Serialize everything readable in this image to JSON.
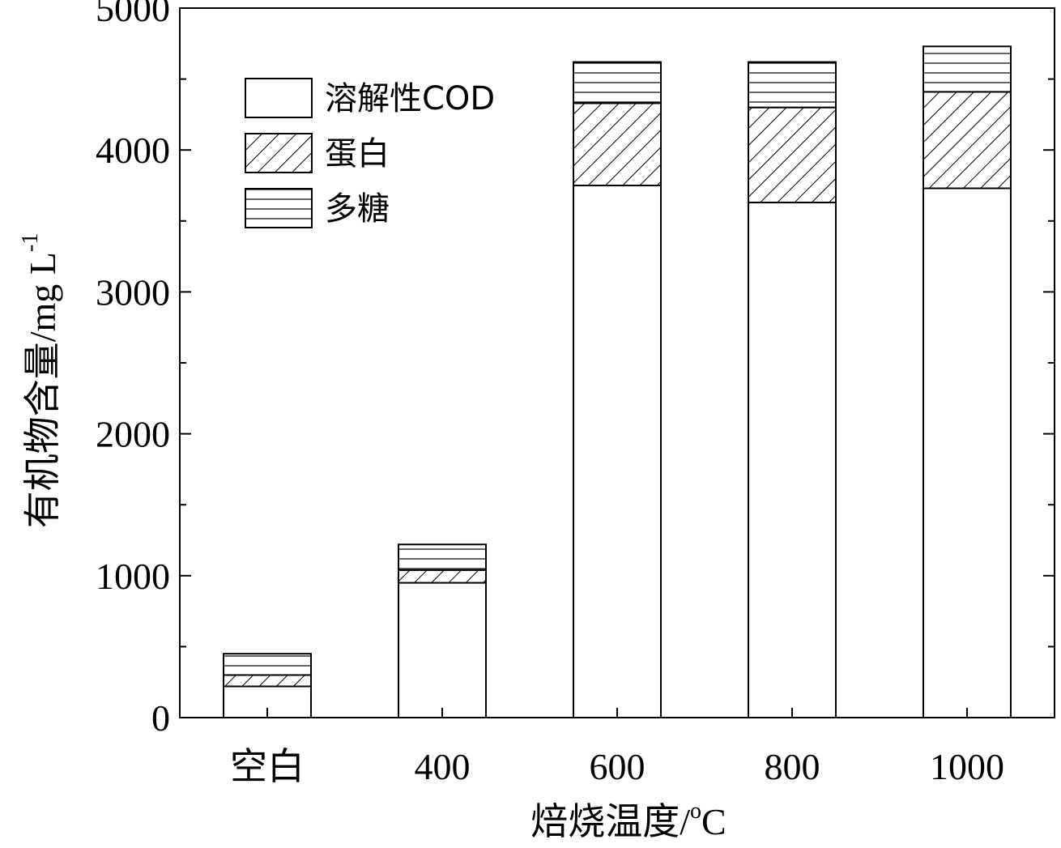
{
  "chart_data": {
    "type": "bar",
    "stacked": true,
    "categories": [
      "空白",
      "400",
      "600",
      "800",
      "1000"
    ],
    "series": [
      {
        "name": "溶解性COD",
        "pattern": "none",
        "values": [
          220,
          950,
          3750,
          3630,
          3730
        ]
      },
      {
        "name": "蛋白",
        "pattern": "diagonal-hatch",
        "values": [
          80,
          90,
          580,
          670,
          680
        ]
      },
      {
        "name": "多糖",
        "pattern": "horizontal-lines",
        "values": [
          150,
          180,
          290,
          320,
          320
        ]
      }
    ],
    "xlabel": "焙烧温度/",
    "xlabel_superscript": "o",
    "xlabel_unit": "C",
    "ylabel": "有机物含量/mg L",
    "ylabel_superscript": "-1",
    "ylim": [
      0,
      5000
    ],
    "yticks": [
      0,
      1000,
      2000,
      3000,
      4000,
      5000
    ],
    "grid": false,
    "legend_position": "top-left",
    "colors": {
      "fill": "#ffffff",
      "stroke": "#000000"
    }
  }
}
